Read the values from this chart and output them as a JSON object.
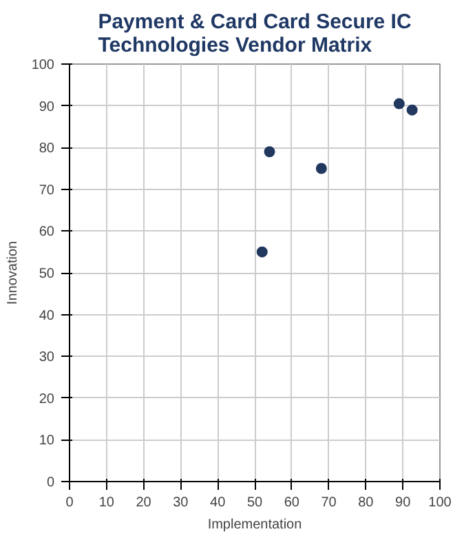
{
  "chart_data": {
    "type": "scatter",
    "title": "Payment & Card Card Secure IC\nTechnologies Vendor Matrix",
    "xlabel": "Implementation",
    "ylabel": "Innovation",
    "series": [
      {
        "color": "#22385f",
        "x": [
          52,
          54,
          68,
          89,
          92.5
        ],
        "values": [
          55,
          79,
          75,
          90.5,
          89
        ]
      }
    ],
    "xlim": [
      0,
      100
    ],
    "ylim": [
      0,
      100
    ],
    "xticks": [
      0,
      10,
      20,
      30,
      40,
      50,
      60,
      70,
      80,
      90,
      100
    ],
    "yticks": [
      0,
      10,
      20,
      30,
      40,
      50,
      60,
      70,
      80,
      90,
      100
    ],
    "grid": true,
    "marker": "circle"
  }
}
